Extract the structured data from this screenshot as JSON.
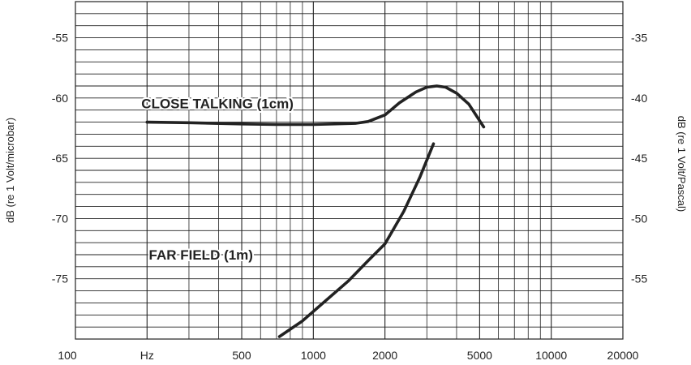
{
  "chart_data": {
    "type": "line",
    "title": "",
    "xlabel": "",
    "x_scale": "log",
    "xlim": [
      100,
      20000
    ],
    "x_tick_labels": [
      "100",
      "Hz",
      "500",
      "1000",
      "2000",
      "5000",
      "10000",
      "20000"
    ],
    "ylabel_left": "dB (re 1 Volt/microbar)",
    "ylabel_right": "dB (re 1 Volt/Pascal)",
    "ylim_left": [
      -80,
      -52
    ],
    "ylim_right": [
      -60,
      -32
    ],
    "y_ticks_left": [
      "-55",
      "-60",
      "-65",
      "-70",
      "-75"
    ],
    "y_ticks_right": [
      "-35",
      "-40",
      "-45",
      "-50",
      "-55"
    ],
    "grid": true,
    "series": [
      {
        "name": "CLOSE TALKING (1cm)",
        "x": [
          200,
          300,
          500,
          700,
          1000,
          1500,
          1700,
          2000,
          2300,
          2700,
          3000,
          3300,
          3600,
          4000,
          4500,
          5200
        ],
        "y": [
          -62.0,
          -62.05,
          -62.15,
          -62.2,
          -62.2,
          -62.1,
          -61.95,
          -61.4,
          -60.4,
          -59.5,
          -59.1,
          -59.0,
          -59.1,
          -59.6,
          -60.5,
          -62.4
        ]
      },
      {
        "name": "FAR FIELD (1m)",
        "x": [
          720,
          900,
          1100,
          1400,
          1700,
          2000,
          2400,
          2800,
          3200
        ],
        "y": [
          -79.8,
          -78.5,
          -77.0,
          -75.2,
          -73.5,
          -72.1,
          -69.4,
          -66.6,
          -63.8
        ]
      }
    ]
  }
}
